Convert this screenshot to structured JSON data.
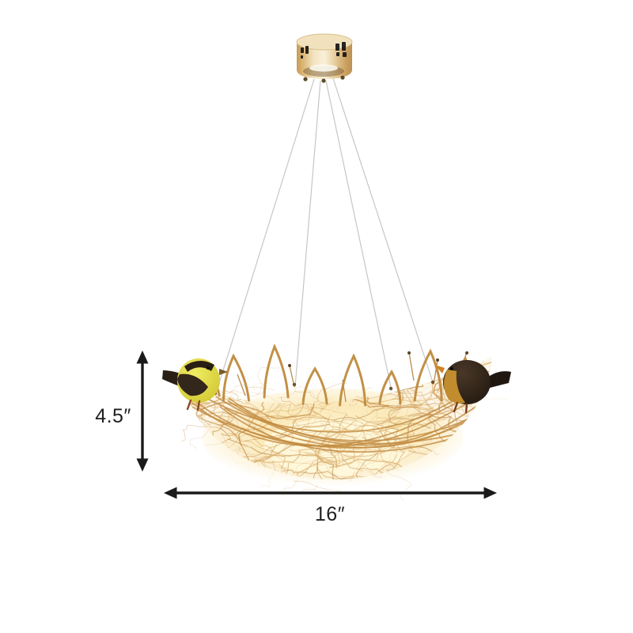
{
  "annotations": {
    "height": {
      "label": "4.5″"
    },
    "width": {
      "label": "16″"
    }
  },
  "icons": {
    "height_arrow": "double-headed-vertical-arrow",
    "width_arrow": "double-headed-horizontal-arrow"
  },
  "colors": {
    "background": "#ffffff",
    "dimension_arrow": "#1a1a1a",
    "cable": "#c6c6c6",
    "canopy_gold": "#d9b06a",
    "nest_wire": "#c8924a",
    "nest_glow": "#fdeec4",
    "left_bird_body": "#e3df44",
    "left_bird_wing": "#33261a",
    "right_bird_body": "#2a1f14",
    "right_bird_breast": "#c08c2e"
  }
}
